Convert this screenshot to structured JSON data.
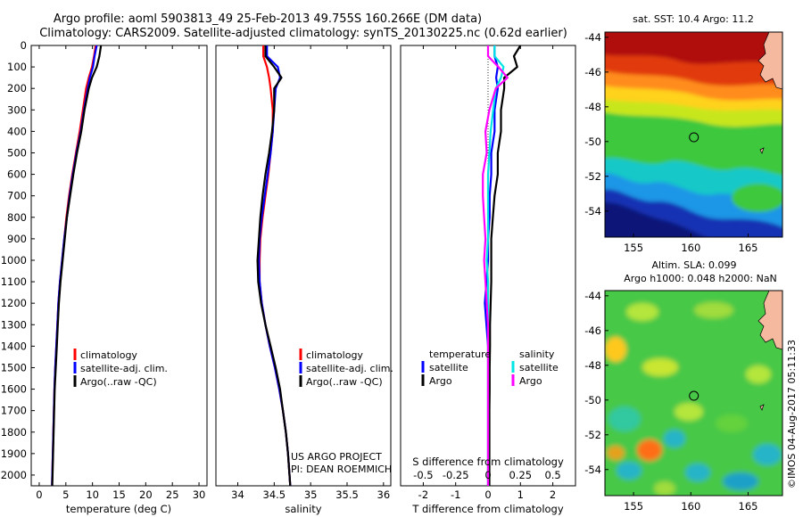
{
  "header": {
    "title_line1": "Argo profile: aoml 5903813_49 25-Feb-2013 49.755S 160.266E (DM data)",
    "title_line2": "Climatology: CARS2009. Satellite-adjusted climatology: synTS_20130225.nc (0.62d earlier)"
  },
  "colors": {
    "climatology": "#ff0000",
    "satellite": "#0000ff",
    "argo": "#000000",
    "sal_satellite": "#00e5e5",
    "sal_argo": "#ff00ff"
  },
  "chart_data": [
    {
      "type": "line",
      "name": "temperature-profile",
      "xlabel": "temperature (deg C)",
      "ylabel": "",
      "xlim": [
        -1.5,
        31.5
      ],
      "ylim": [
        2050,
        0
      ],
      "xticks": [
        "0",
        "5",
        "10",
        "15",
        "20",
        "25",
        "30"
      ],
      "yticks": [
        "0",
        "100",
        "200",
        "300",
        "400",
        "500",
        "600",
        "700",
        "800",
        "900",
        "1000",
        "1100",
        "1200",
        "1300",
        "1400",
        "1500",
        "1600",
        "1700",
        "1800",
        "1900",
        "2000"
      ],
      "depth": [
        0,
        50,
        100,
        150,
        200,
        300,
        400,
        500,
        600,
        700,
        800,
        900,
        1000,
        1100,
        1200,
        1300,
        1400,
        1500,
        1600,
        1700,
        1800,
        1900,
        2000,
        2050
      ],
      "series": [
        {
          "name": "climatology",
          "color": "#ff0000",
          "values": [
            10.6,
            10.3,
            9.9,
            9.3,
            8.8,
            8.2,
            7.6,
            6.9,
            6.2,
            5.6,
            5.1,
            4.7,
            4.3,
            3.9,
            3.6,
            3.4,
            3.2,
            3.0,
            2.85,
            2.75,
            2.65,
            2.55,
            2.45,
            2.4
          ]
        },
        {
          "name": "satellite-adj. clim.",
          "color": "#0000ff",
          "values": [
            10.8,
            10.4,
            10.1,
            9.5,
            9.1,
            8.4,
            7.8,
            7.0,
            6.3,
            5.7,
            5.2,
            4.7,
            4.3,
            3.9,
            3.6,
            3.4,
            3.2,
            3.0,
            2.85,
            2.75,
            2.65,
            2.55,
            2.45,
            2.4
          ]
        },
        {
          "name": "Argo(..raw -QC)",
          "color": "#000000",
          "values": [
            11.6,
            11.3,
            10.8,
            9.9,
            9.3,
            8.5,
            7.9,
            7.1,
            6.4,
            5.8,
            5.2,
            4.8,
            4.4,
            4.0,
            3.7,
            3.5,
            3.3,
            3.1,
            2.9,
            2.8,
            2.7,
            2.6,
            2.5,
            2.45
          ]
        }
      ],
      "legend": [
        "climatology",
        "satellite-adj. clim.",
        "Argo(..raw -QC)"
      ]
    },
    {
      "type": "line",
      "name": "salinity-profile",
      "xlabel": "salinity",
      "xlim": [
        33.7,
        36.1
      ],
      "ylim": [
        2050,
        0
      ],
      "xticks": [
        "34",
        "34.5",
        "35",
        "35.5",
        "36"
      ],
      "depth": [
        0,
        50,
        100,
        150,
        200,
        300,
        400,
        500,
        600,
        700,
        800,
        900,
        1000,
        1100,
        1200,
        1300,
        1400,
        1500,
        1600,
        1700,
        1800,
        1900,
        2000,
        2050
      ],
      "series": [
        {
          "name": "climatology",
          "color": "#ff0000",
          "values": [
            34.35,
            34.35,
            34.4,
            34.43,
            34.45,
            34.48,
            34.48,
            34.45,
            34.42,
            34.38,
            34.34,
            34.31,
            34.3,
            34.3,
            34.33,
            34.38,
            34.44,
            34.51,
            34.57,
            34.62,
            34.66,
            34.69,
            34.71,
            34.72
          ]
        },
        {
          "name": "satellite-adj. clim.",
          "color": "#0000ff",
          "values": [
            34.4,
            34.4,
            34.55,
            34.58,
            34.52,
            34.5,
            34.48,
            34.45,
            34.41,
            34.37,
            34.33,
            34.3,
            34.29,
            34.3,
            34.33,
            34.38,
            34.44,
            34.51,
            34.57,
            34.62,
            34.66,
            34.69,
            34.71,
            34.72
          ]
        },
        {
          "name": "Argo(..raw -QC)",
          "color": "#000000",
          "values": [
            34.38,
            34.38,
            34.5,
            34.6,
            34.5,
            34.5,
            34.47,
            34.43,
            34.38,
            34.34,
            34.31,
            34.29,
            34.27,
            34.28,
            34.32,
            34.38,
            34.45,
            34.52,
            34.58,
            34.62,
            34.66,
            34.69,
            34.71,
            34.72
          ]
        }
      ],
      "legend": [
        "climatology",
        "satellite-adj. clim.",
        "Argo(..raw -QC)"
      ],
      "annotation_line1": "US ARGO PROJECT",
      "annotation_line2": "PI: DEAN ROEMMICH"
    },
    {
      "type": "line",
      "name": "difference-profile",
      "xlabel": "T difference from climatology",
      "xlabel_top": "S difference from climatology",
      "xlim": [
        -2.7,
        2.7
      ],
      "ylim": [
        2050,
        0
      ],
      "xticks": [
        "-2",
        "-1",
        "0",
        "1",
        "2"
      ],
      "xticks_s": [
        "-0.5",
        "-0.25",
        "0",
        "0.25",
        "0.5"
      ],
      "depth": [
        0,
        50,
        100,
        150,
        200,
        300,
        400,
        500,
        600,
        700,
        800,
        900,
        1000,
        1100,
        1200,
        1300,
        1400,
        1500,
        1600,
        1700,
        1800,
        1900,
        2000,
        2050
      ],
      "series": [
        {
          "name": "temperature satellite",
          "color": "#0000ff",
          "values": [
            0.2,
            0.2,
            0.3,
            0.25,
            0.3,
            0.2,
            0.2,
            0.1,
            0.1,
            0.05,
            0.05,
            0.0,
            0.0,
            -0.05,
            -0.1,
            -0.05,
            0.0,
            0.0,
            0.0,
            0.0,
            0.0,
            0.0,
            0.0,
            0.0
          ]
        },
        {
          "name": "temperature Argo",
          "color": "#000000",
          "values": [
            1.0,
            0.8,
            0.9,
            0.5,
            0.5,
            0.4,
            0.4,
            0.3,
            0.3,
            0.2,
            0.15,
            0.1,
            0.1,
            0.1,
            0.08,
            0.06,
            0.06,
            0.05,
            0.05,
            0.04,
            0.04,
            0.04,
            0.04,
            0.04
          ]
        },
        {
          "name": "salinity satellite",
          "color": "#00e5e5",
          "values": [
            0.05,
            0.05,
            0.12,
            0.1,
            0.06,
            0.04,
            0.02,
            0.01,
            0.0,
            0.0,
            0.0,
            0.0,
            -0.01,
            0.0,
            0.0,
            0.0,
            0.0,
            0.0,
            0.0,
            0.0,
            0.0,
            0.0,
            0.0,
            0.0
          ]
        },
        {
          "name": "salinity Argo",
          "color": "#ff00ff",
          "values": [
            0.0,
            0.0,
            0.08,
            0.15,
            0.06,
            0.01,
            -0.02,
            -0.01,
            -0.04,
            -0.04,
            -0.03,
            -0.02,
            -0.03,
            -0.02,
            -0.01,
            0.0,
            0.0,
            0.0,
            0.0,
            0.0,
            0.0,
            0.0,
            0.0,
            0.0
          ]
        }
      ],
      "legend_title_t": "temperature",
      "legend_title_s": "salinity",
      "legend_t": [
        "satellite",
        "Argo"
      ],
      "legend_s": [
        "satellite",
        "Argo"
      ]
    },
    {
      "type": "heatmap",
      "name": "sst-map",
      "title": "sat. SST: 10.4  Argo: 11.2",
      "xticks": [
        "155",
        "160",
        "165"
      ],
      "yticks": [
        "-44",
        "-46",
        "-48",
        "-50",
        "-52",
        "-54"
      ],
      "xlim": [
        152.5,
        168
      ],
      "ylim": [
        -55.5,
        -43.7
      ],
      "float_position": [
        160.266,
        -49.755
      ]
    },
    {
      "type": "heatmap",
      "name": "sla-map",
      "title_line1": "Altim. SLA: 0.099",
      "title_line2": "Argo h1000: 0.048 h2000: NaN",
      "xticks": [
        "155",
        "160",
        "165"
      ],
      "yticks": [
        "-44",
        "-46",
        "-48",
        "-50",
        "-52",
        "-54"
      ],
      "xlim": [
        152.5,
        168
      ],
      "ylim": [
        -55.5,
        -43.7
      ],
      "float_position": [
        160.266,
        -49.755
      ]
    }
  ],
  "footer": {
    "credit": "©IMOS 04-Aug-2017 05:11:33"
  }
}
